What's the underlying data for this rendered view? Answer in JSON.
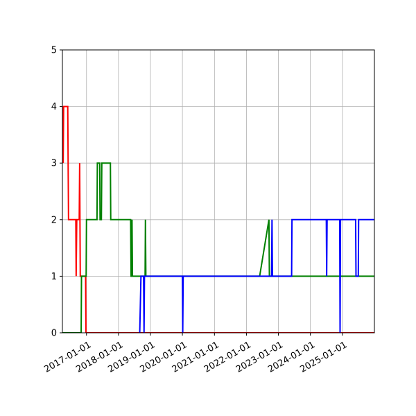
{
  "chart_data": {
    "type": "line",
    "title": "",
    "xlabel": "",
    "ylabel": "",
    "xlim": [
      "2016-04-01",
      "2026-01-01"
    ],
    "ylim": [
      0,
      5
    ],
    "grid": true,
    "line_shape": "step",
    "x_tick_labels": [
      "2017-01-01",
      "2018-01-01",
      "2019-01-01",
      "2020-01-01",
      "2021-01-01",
      "2022-01-01",
      "2023-01-01",
      "2024-01-01",
      "2025-01-01"
    ],
    "y_tick_labels": [
      "0",
      "1",
      "2",
      "3",
      "4",
      "5"
    ],
    "y_ticks": [
      0,
      1,
      2,
      3,
      4,
      5
    ],
    "series": [
      {
        "color": "#ff0000",
        "points": [
          [
            "2016-04-01",
            4
          ],
          [
            "2016-04-10",
            3
          ],
          [
            "2016-04-15",
            4
          ],
          [
            "2016-06-01",
            4
          ],
          [
            "2016-06-10",
            2
          ],
          [
            "2016-09-01",
            2
          ],
          [
            "2016-09-05",
            1
          ],
          [
            "2016-09-12",
            2
          ],
          [
            "2016-10-10",
            2
          ],
          [
            "2016-10-15",
            3
          ],
          [
            "2016-10-22",
            1
          ],
          [
            "2016-12-22",
            1
          ],
          [
            "2016-12-26",
            0
          ],
          [
            "2026-01-01",
            0
          ]
        ]
      },
      {
        "color": "#008000",
        "points": [
          [
            "2016-04-01",
            0
          ],
          [
            "2016-11-01",
            0
          ],
          [
            "2016-11-05",
            1
          ],
          [
            "2016-12-28",
            1
          ],
          [
            "2017-01-01",
            2
          ],
          [
            "2017-05-01",
            2
          ],
          [
            "2017-05-05",
            3
          ],
          [
            "2017-06-01",
            3
          ],
          [
            "2017-06-05",
            2
          ],
          [
            "2017-06-20",
            2
          ],
          [
            "2017-06-25",
            3
          ],
          [
            "2017-10-01",
            3
          ],
          [
            "2017-10-05",
            2
          ],
          [
            "2018-05-20",
            2
          ],
          [
            "2018-05-25",
            1
          ],
          [
            "2018-06-01",
            1
          ],
          [
            "2018-06-05",
            2
          ],
          [
            "2018-06-10",
            1
          ],
          [
            "2018-11-01",
            1
          ],
          [
            "2018-11-05",
            2
          ],
          [
            "2018-11-10",
            1
          ],
          [
            "2022-06-01",
            1
          ],
          [
            "2022-09-15",
            2
          ],
          [
            "2022-09-20",
            1
          ],
          [
            "2026-01-01",
            1
          ]
        ]
      },
      {
        "color": "#0000ff",
        "points": [
          [
            "2018-09-01",
            0
          ],
          [
            "2018-09-15",
            1
          ],
          [
            "2018-10-15",
            1
          ],
          [
            "2018-10-20",
            0
          ],
          [
            "2018-10-25",
            1
          ],
          [
            "2020-01-01",
            1
          ],
          [
            "2020-01-05",
            0
          ],
          [
            "2020-01-10",
            1
          ],
          [
            "2022-10-15",
            1
          ],
          [
            "2022-10-20",
            2
          ],
          [
            "2022-10-25",
            1
          ],
          [
            "2023-06-01",
            1
          ],
          [
            "2023-06-05",
            2
          ],
          [
            "2024-07-01",
            2
          ],
          [
            "2024-07-05",
            1
          ],
          [
            "2024-07-10",
            2
          ],
          [
            "2024-12-01",
            2
          ],
          [
            "2024-12-05",
            0
          ],
          [
            "2024-12-10",
            2
          ],
          [
            "2025-06-01",
            2
          ],
          [
            "2025-06-05",
            1
          ],
          [
            "2025-07-01",
            1
          ],
          [
            "2025-07-05",
            2
          ],
          [
            "2026-01-01",
            2
          ]
        ]
      }
    ]
  }
}
